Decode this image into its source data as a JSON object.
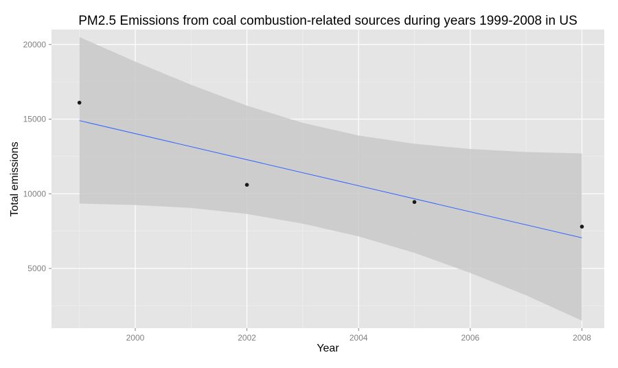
{
  "chart_data": {
    "type": "scatter",
    "title": "PM2.5 Emissions from coal combustion-related sources during years 1999-2008 in US",
    "xlabel": "Year",
    "ylabel": "Total emissions",
    "x_ticks": [
      2000,
      2002,
      2004,
      2006,
      2008
    ],
    "y_ticks": [
      5000,
      10000,
      15000,
      20000
    ],
    "xlim": [
      1998.5,
      2008.4
    ],
    "ylim": [
      1000,
      21000
    ],
    "grid": true,
    "series": [
      {
        "x": [
          1999,
          2002,
          2005,
          2008
        ],
        "y": [
          16100,
          10600,
          9450,
          7800
        ]
      }
    ],
    "fit": {
      "method": "linear",
      "x": [
        1999,
        2008
      ],
      "y": [
        14900,
        7050
      ]
    },
    "confidence_band": {
      "x": [
        1999,
        2000,
        2001,
        2002,
        2003,
        2004,
        2005,
        2006,
        2007,
        2008
      ],
      "upper": [
        20500,
        18850,
        17300,
        15900,
        14750,
        13900,
        13350,
        13000,
        12800,
        12700
      ],
      "lower": [
        9350,
        9250,
        9050,
        8650,
        8000,
        7150,
        6050,
        4700,
        3200,
        1500
      ]
    },
    "colors": {
      "panel_background": "#e5e5e5",
      "grid_major": "#ffffff",
      "grid_minor": "#f2f2f2",
      "band_fill": "#c9c9c9",
      "fit_line": "#3366ff",
      "points": "#1a1a1a",
      "tick_text": "#7f7f7f"
    }
  }
}
